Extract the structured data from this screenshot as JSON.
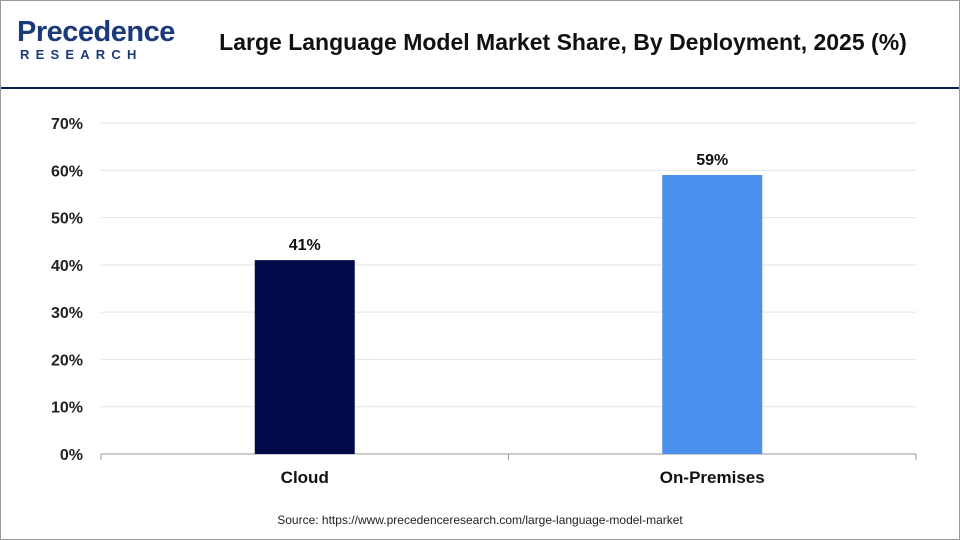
{
  "header": {
    "logo_text": "Precedence",
    "logo_subtext": "RESEARCH",
    "title": "Large Language Model Market Share, By Deployment, 2025 (%)"
  },
  "chart_data": {
    "type": "bar",
    "title": "Large Language Model Market Share, By Deployment, 2025 (%)",
    "categories": [
      "Cloud",
      "On-Premises"
    ],
    "values": [
      41,
      59
    ],
    "data_labels": [
      "41%",
      "59%"
    ],
    "colors": [
      "#020a4a",
      "#4a90ec"
    ],
    "xlabel": "",
    "ylabel": "",
    "ylim": [
      0,
      70
    ],
    "yticks": [
      0,
      10,
      20,
      30,
      40,
      50,
      60,
      70
    ],
    "ytick_labels": [
      "0%",
      "10%",
      "20%",
      "30%",
      "40%",
      "50%",
      "60%",
      "70%"
    ],
    "grid": true,
    "legend": "none"
  },
  "footer": {
    "source": "Source: https://www.precedenceresearch.com/large-language-model-market"
  }
}
